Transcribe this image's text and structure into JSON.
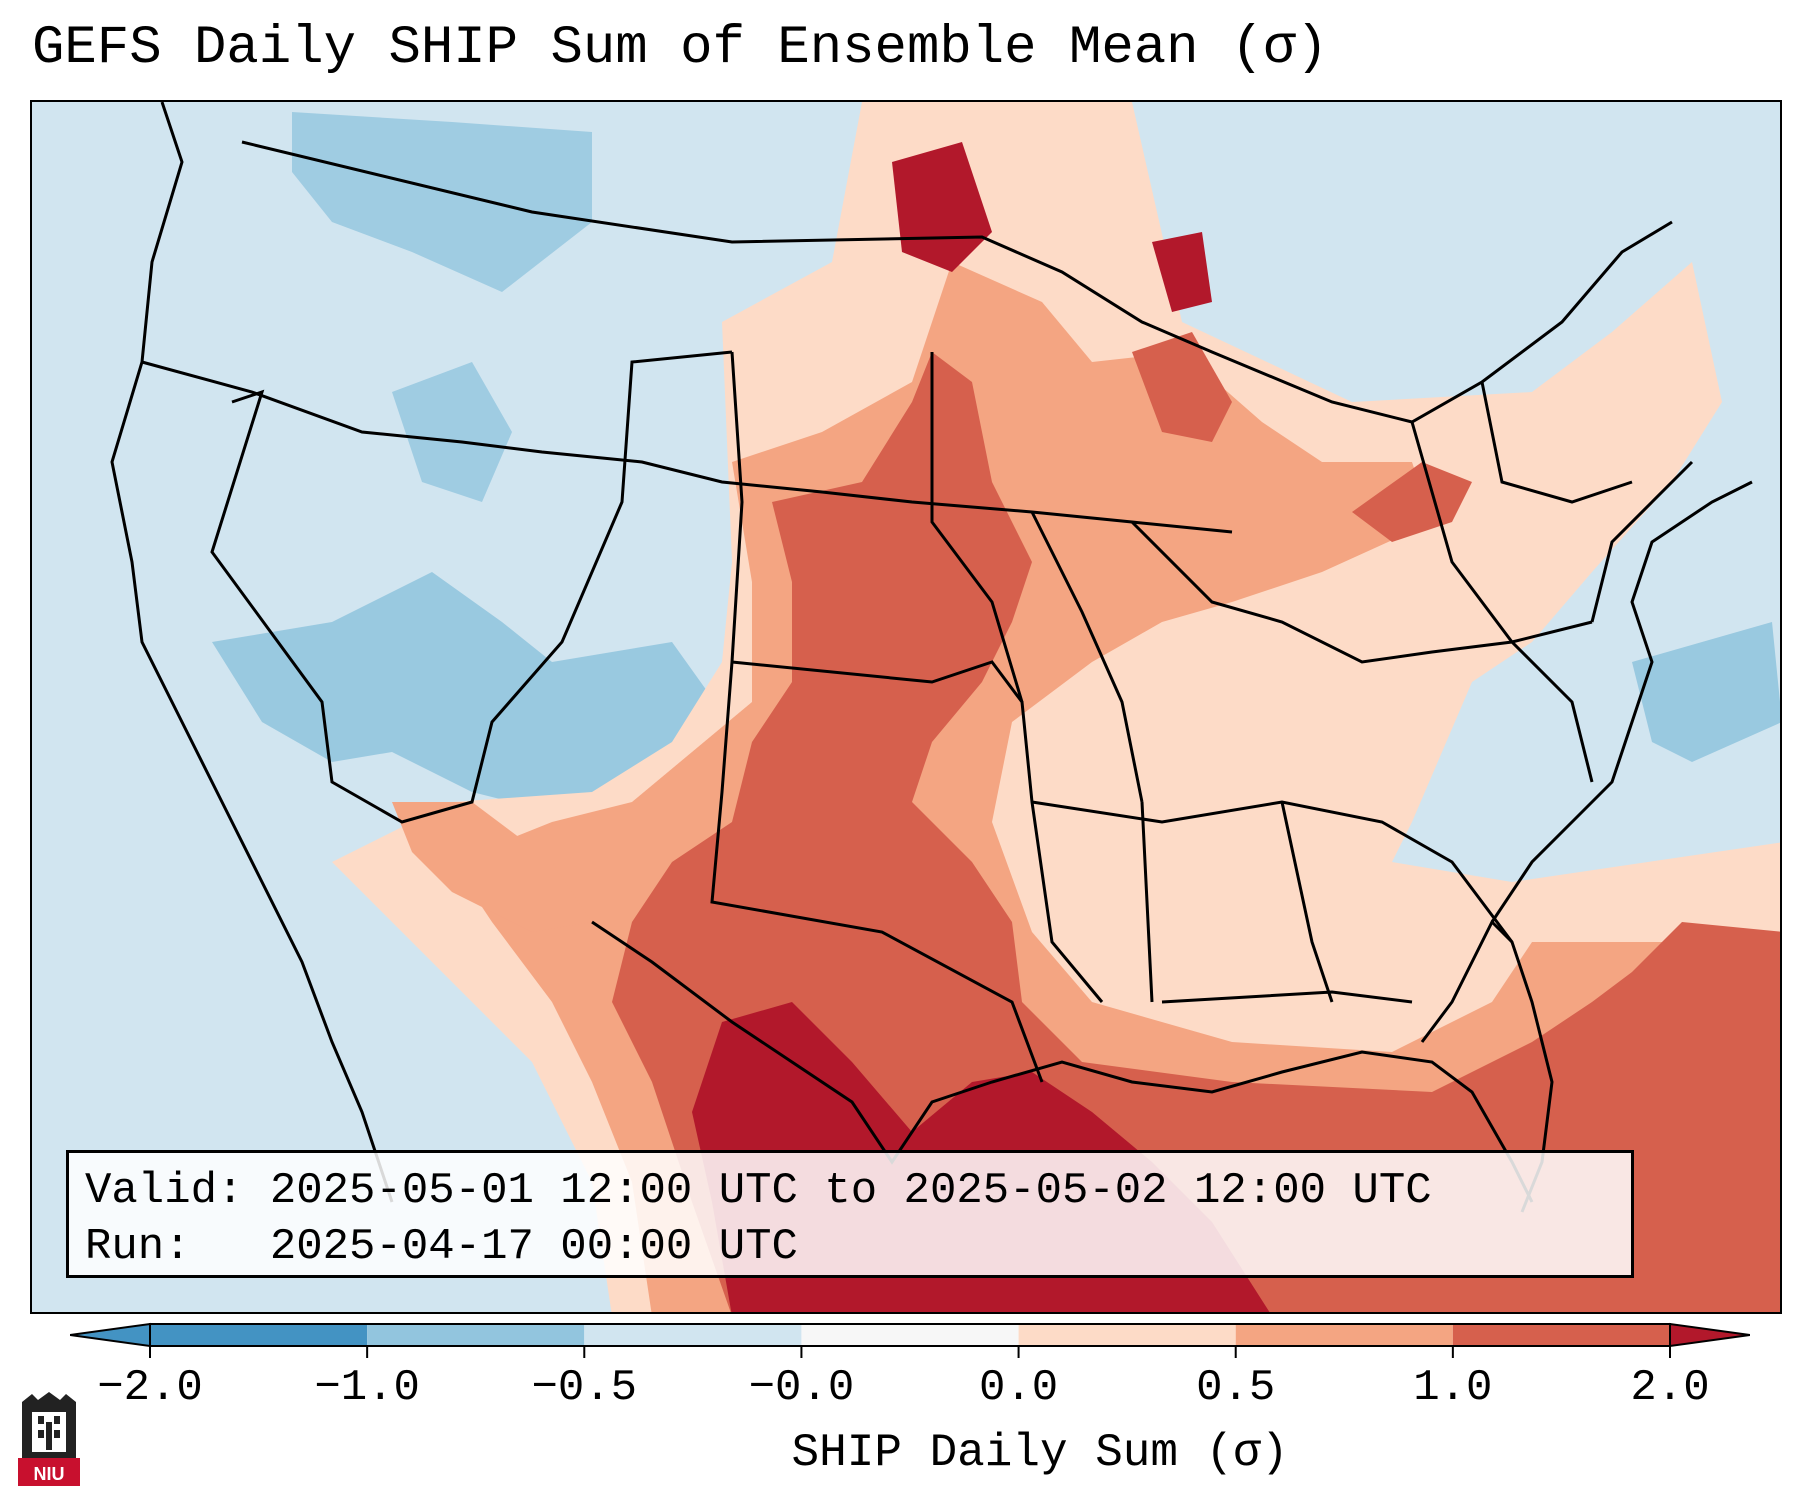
{
  "title": "GEFS Daily SHIP Sum of Ensemble Mean (σ)",
  "info": {
    "valid_label": "Valid:",
    "valid_value": "2025-05-01 12:00 UTC to 2025-05-02 12:00 UTC",
    "run_label": "Run:",
    "run_value": "2025-04-17 00:00 UTC"
  },
  "colorbar": {
    "label": "SHIP Daily Sum (σ)",
    "ticks": [
      "−2.0",
      "−1.0",
      "−0.5",
      "−0.0",
      "0.0",
      "0.5",
      "1.0",
      "2.0"
    ],
    "colors": [
      "#4393c3",
      "#92c5de",
      "#d1e5f0",
      "#f7f7f7",
      "#fddbc7",
      "#f4a582",
      "#d6604d",
      "#b2182b"
    ],
    "extend": "both"
  },
  "logo": {
    "text": "NIU",
    "color": "#c8102e"
  },
  "map": {
    "projection": "CONUS Lambert conformal",
    "background_color": "#d1e5f0",
    "description_key": "anomaly-shading"
  }
}
